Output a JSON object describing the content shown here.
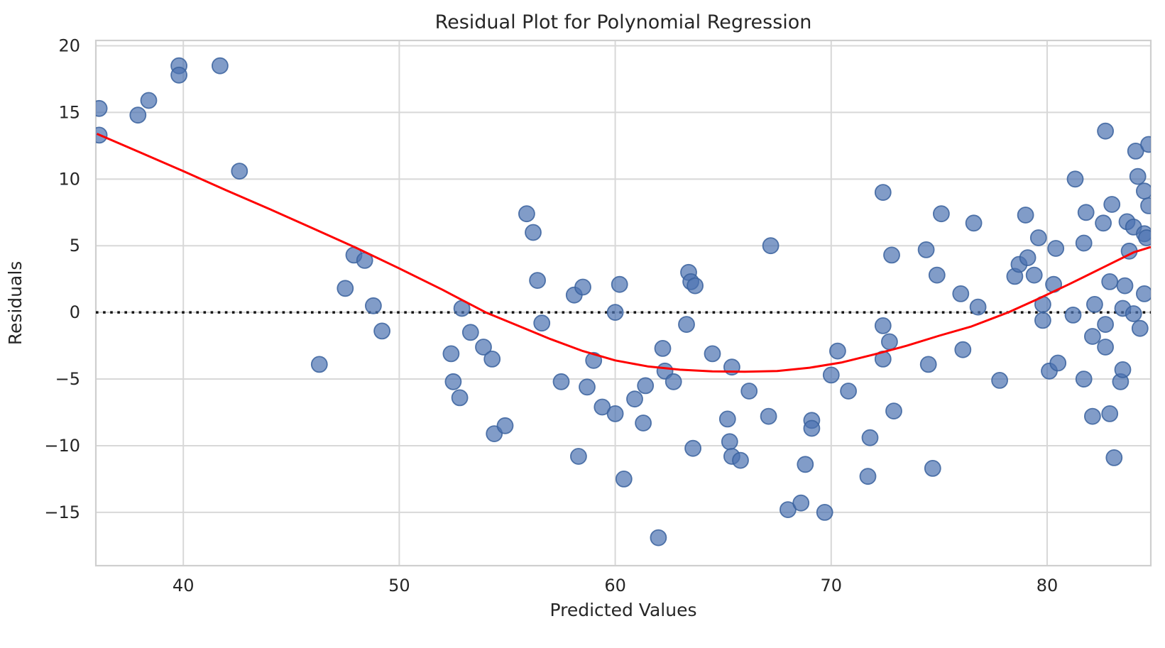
{
  "title": "Residual Plot for Polynomial Regression",
  "colors": {
    "scatter_fill": "#4c72b0",
    "scatter_edge": "#39629e",
    "trend_line": "#ff0000",
    "zero_line": "#141414",
    "grid_line": "#d8d8d8",
    "spine": "#cfcfcf",
    "text": "#262626"
  },
  "chart_data": {
    "type": "scatter",
    "title": "Residual Plot for Polynomial Regression",
    "xlabel": "Predicted Values",
    "ylabel": "Residuals",
    "xlim": [
      35.95,
      84.8
    ],
    "ylim": [
      -19.0,
      20.4
    ],
    "xticks": [
      40,
      50,
      60,
      70,
      80
    ],
    "yticks": [
      -15,
      -10,
      -5,
      0,
      5,
      10,
      15,
      20
    ],
    "grid": true,
    "legend": "none",
    "zero_line": {
      "y": 0,
      "style": "dotted"
    },
    "series": [
      {
        "name": "residuals-scatter",
        "type": "scatter",
        "marker_radius": 11,
        "opacity": 0.7,
        "points": [
          [
            36.1,
            15.3
          ],
          [
            36.1,
            13.3
          ],
          [
            37.9,
            14.8
          ],
          [
            38.4,
            15.9
          ],
          [
            39.8,
            18.5
          ],
          [
            39.8,
            17.8
          ],
          [
            41.7,
            18.5
          ],
          [
            42.6,
            10.6
          ],
          [
            46.3,
            -3.9
          ],
          [
            47.5,
            1.8
          ],
          [
            47.9,
            4.3
          ],
          [
            48.4,
            3.9
          ],
          [
            48.8,
            0.5
          ],
          [
            49.2,
            -1.4
          ],
          [
            52.4,
            -3.1
          ],
          [
            52.5,
            -5.2
          ],
          [
            52.8,
            -6.4
          ],
          [
            52.9,
            0.3
          ],
          [
            53.3,
            -1.5
          ],
          [
            53.9,
            -2.6
          ],
          [
            54.3,
            -3.5
          ],
          [
            54.4,
            -9.1
          ],
          [
            54.9,
            -8.5
          ],
          [
            55.9,
            7.4
          ],
          [
            56.2,
            6.0
          ],
          [
            56.4,
            2.4
          ],
          [
            56.6,
            -0.8
          ],
          [
            57.5,
            -5.2
          ],
          [
            58.1,
            1.3
          ],
          [
            58.3,
            -10.8
          ],
          [
            58.5,
            1.9
          ],
          [
            58.7,
            -5.6
          ],
          [
            59.0,
            -3.6
          ],
          [
            59.4,
            -7.1
          ],
          [
            60.0,
            0.0
          ],
          [
            60.0,
            -7.6
          ],
          [
            60.2,
            2.1
          ],
          [
            60.4,
            -12.5
          ],
          [
            60.9,
            -6.5
          ],
          [
            61.3,
            -8.3
          ],
          [
            61.4,
            -5.5
          ],
          [
            62.0,
            -16.9
          ],
          [
            62.2,
            -2.7
          ],
          [
            62.3,
            -4.4
          ],
          [
            62.7,
            -5.2
          ],
          [
            63.3,
            -0.9
          ],
          [
            63.4,
            3.0
          ],
          [
            63.5,
            2.3
          ],
          [
            63.7,
            2.0
          ],
          [
            63.6,
            -10.2
          ],
          [
            64.5,
            -3.1
          ],
          [
            65.2,
            -8.0
          ],
          [
            65.3,
            -9.7
          ],
          [
            65.4,
            -4.1
          ],
          [
            65.4,
            -10.8
          ],
          [
            65.8,
            -11.1
          ],
          [
            66.2,
            -5.9
          ],
          [
            67.1,
            -7.8
          ],
          [
            67.2,
            5.0
          ],
          [
            68.0,
            -14.8
          ],
          [
            68.6,
            -14.3
          ],
          [
            68.8,
            -11.4
          ],
          [
            69.1,
            -8.1
          ],
          [
            69.1,
            -8.7
          ],
          [
            69.7,
            -15.0
          ],
          [
            70.0,
            -4.7
          ],
          [
            70.3,
            -2.9
          ],
          [
            70.8,
            -5.9
          ],
          [
            71.7,
            -12.3
          ],
          [
            71.8,
            -9.4
          ],
          [
            72.4,
            9.0
          ],
          [
            72.4,
            -1.0
          ],
          [
            72.4,
            -3.5
          ],
          [
            72.7,
            -2.2
          ],
          [
            72.8,
            4.3
          ],
          [
            72.9,
            -7.4
          ],
          [
            74.4,
            4.7
          ],
          [
            74.5,
            -3.9
          ],
          [
            74.7,
            -11.7
          ],
          [
            74.9,
            2.8
          ],
          [
            75.1,
            7.4
          ],
          [
            76.0,
            1.4
          ],
          [
            76.1,
            -2.8
          ],
          [
            76.6,
            6.7
          ],
          [
            76.8,
            0.4
          ],
          [
            77.8,
            -5.1
          ],
          [
            78.5,
            2.7
          ],
          [
            78.7,
            3.6
          ],
          [
            79.0,
            7.3
          ],
          [
            79.1,
            4.1
          ],
          [
            79.4,
            2.8
          ],
          [
            79.6,
            5.6
          ],
          [
            79.8,
            0.6
          ],
          [
            79.8,
            -0.6
          ],
          [
            80.1,
            -4.4
          ],
          [
            80.3,
            2.1
          ],
          [
            80.4,
            4.8
          ],
          [
            80.5,
            -3.8
          ],
          [
            81.2,
            -0.2
          ],
          [
            81.3,
            10.0
          ],
          [
            81.7,
            5.2
          ],
          [
            81.7,
            -5.0
          ],
          [
            81.8,
            7.5
          ],
          [
            82.1,
            -1.8
          ],
          [
            82.1,
            -7.8
          ],
          [
            82.2,
            0.6
          ],
          [
            82.6,
            6.7
          ],
          [
            82.7,
            13.6
          ],
          [
            82.7,
            -0.9
          ],
          [
            82.7,
            -2.6
          ],
          [
            82.9,
            -7.6
          ],
          [
            82.9,
            2.3
          ],
          [
            83.0,
            8.1
          ],
          [
            83.1,
            -10.9
          ],
          [
            83.4,
            -5.2
          ],
          [
            83.5,
            0.3
          ],
          [
            83.5,
            -4.3
          ],
          [
            83.6,
            2.0
          ],
          [
            83.7,
            6.8
          ],
          [
            83.8,
            4.6
          ],
          [
            84.0,
            6.4
          ],
          [
            84.0,
            -0.1
          ],
          [
            84.1,
            12.1
          ],
          [
            84.2,
            10.2
          ],
          [
            84.3,
            -1.2
          ],
          [
            84.5,
            9.1
          ],
          [
            84.5,
            5.9
          ],
          [
            84.5,
            1.4
          ],
          [
            84.6,
            5.6
          ],
          [
            84.7,
            12.6
          ],
          [
            84.7,
            8.0
          ]
        ]
      },
      {
        "name": "lowess-trend",
        "type": "line",
        "stroke_width": 3,
        "points": [
          [
            36.0,
            13.4
          ],
          [
            38,
            12.0
          ],
          [
            40,
            10.6
          ],
          [
            42,
            9.15
          ],
          [
            44,
            7.75
          ],
          [
            46,
            6.3
          ],
          [
            48,
            4.85
          ],
          [
            50,
            3.3
          ],
          [
            52,
            1.7
          ],
          [
            54.0,
            0.0
          ],
          [
            55.5,
            -1.0
          ],
          [
            57,
            -2.0
          ],
          [
            58.5,
            -2.9
          ],
          [
            60,
            -3.6
          ],
          [
            61.5,
            -4.05
          ],
          [
            63,
            -4.3
          ],
          [
            64.5,
            -4.42
          ],
          [
            66,
            -4.45
          ],
          [
            67.5,
            -4.4
          ],
          [
            69,
            -4.15
          ],
          [
            70.5,
            -3.75
          ],
          [
            72,
            -3.15
          ],
          [
            73.5,
            -2.5
          ],
          [
            75,
            -1.75
          ],
          [
            76.5,
            -1.05
          ],
          [
            78.2,
            0.0
          ],
          [
            79.5,
            0.95
          ],
          [
            81,
            2.1
          ],
          [
            82.5,
            3.3
          ],
          [
            84,
            4.5
          ],
          [
            84.8,
            4.9
          ]
        ]
      }
    ]
  }
}
